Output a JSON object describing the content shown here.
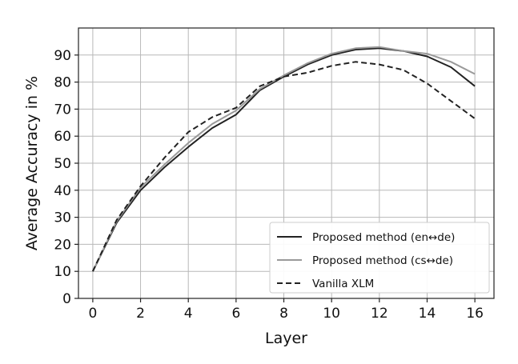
{
  "chart_data": {
    "type": "line",
    "title": "",
    "xlabel": "Layer",
    "ylabel": "Average Accuracy in %",
    "xlim": [
      -0.6,
      16.8
    ],
    "ylim": [
      0,
      100
    ],
    "xticks": [
      0,
      2,
      4,
      6,
      8,
      10,
      12,
      14,
      16
    ],
    "yticks": [
      0,
      10,
      20,
      30,
      40,
      50,
      60,
      70,
      80,
      90
    ],
    "grid": true,
    "legend_position": "bottom-right",
    "x": [
      0,
      1,
      2,
      3,
      4,
      5,
      6,
      7,
      8,
      9,
      10,
      11,
      12,
      13,
      14,
      15,
      16
    ],
    "series": [
      {
        "name": "Proposed method (en↔de)",
        "color": "#222222",
        "dash": "solid",
        "values": [
          10,
          28,
          40,
          48.5,
          56,
          63,
          68,
          77,
          82,
          86.5,
          90,
          92,
          92.5,
          91.5,
          89.5,
          85.5,
          78.5
        ]
      },
      {
        "name": "Proposed method (cs↔de)",
        "color": "#9a9a9a",
        "dash": "solid",
        "values": [
          10,
          28.5,
          41,
          49.5,
          57.5,
          64.5,
          69.5,
          77.5,
          82.5,
          87,
          90.5,
          92.5,
          93,
          91.5,
          90.5,
          87.5,
          83
        ]
      },
      {
        "name": "Vanilla XLM",
        "color": "#222222",
        "dash": "dashed",
        "values": [
          10,
          29,
          41.5,
          52,
          61.5,
          67,
          70.5,
          78.5,
          82,
          83.5,
          86,
          87.5,
          86.5,
          84.5,
          79.5,
          73,
          66.5
        ]
      }
    ]
  }
}
